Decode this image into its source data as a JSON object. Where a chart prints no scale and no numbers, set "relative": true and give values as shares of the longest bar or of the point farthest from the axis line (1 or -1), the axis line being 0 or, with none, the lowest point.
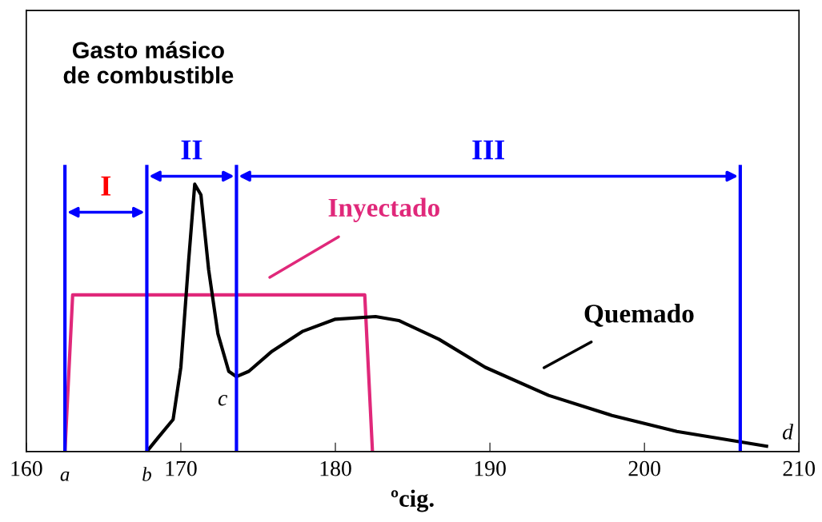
{
  "chart_data": {
    "type": "line",
    "title": "Gasto másico\nde combustible",
    "xlabel": "ºcig.",
    "relative": true,
    "xlim": [
      160,
      210
    ],
    "xticks": [
      160,
      {
        "value": 162.5,
        "label": "a"
      },
      {
        "value": 167.8,
        "label": "b"
      },
      170,
      180,
      190,
      200,
      210
    ],
    "series": [
      {
        "name": "Inyectado",
        "color": "#e0287a",
        "x": [
          162.5,
          163.0,
          181.9,
          182.4
        ],
        "values": [
          0,
          0.586,
          0.586,
          0
        ]
      },
      {
        "name": "Quemado",
        "color": "#000000",
        "x": [
          167.8,
          168.5,
          169.5,
          170.0,
          170.5,
          170.9,
          171.3,
          171.8,
          172.4,
          173.1,
          173.6,
          174.4,
          175.9,
          177.9,
          180.0,
          182.6,
          184.1,
          186.7,
          189.7,
          193.8,
          197.9,
          202.1,
          206.2,
          207.9
        ],
        "values": [
          0,
          0.05,
          0.12,
          0.315,
          0.71,
          1.0,
          0.96,
          0.68,
          0.44,
          0.3,
          0.28,
          0.3,
          0.375,
          0.45,
          0.495,
          0.505,
          0.49,
          0.42,
          0.315,
          0.21,
          0.135,
          0.075,
          0.036,
          0.02
        ]
      }
    ],
    "ref_lines": [
      {
        "axis": "x",
        "value": 162.5,
        "color": "#0000ff"
      },
      {
        "axis": "x",
        "value": 167.8,
        "color": "#0000ff"
      },
      {
        "axis": "x",
        "value": 173.6,
        "color": "#0000ff"
      },
      {
        "axis": "x",
        "value": 206.2,
        "color": "#0000ff"
      }
    ],
    "annotations": [
      "I",
      "II",
      "III",
      {
        "text": "c",
        "x": 173.6,
        "y": 0.28
      },
      {
        "text": "d",
        "x": 207.9,
        "y": 0.02
      }
    ],
    "legend": false,
    "marker": "none",
    "line_style": "solid"
  }
}
